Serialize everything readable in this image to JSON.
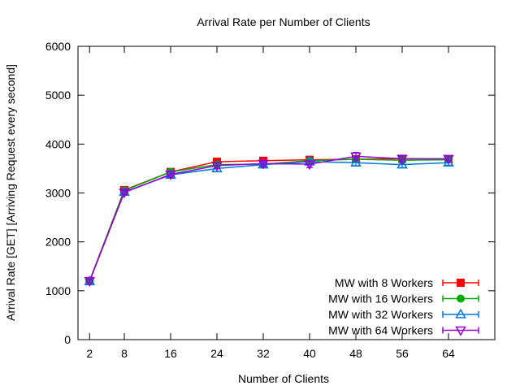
{
  "chart_data": {
    "type": "line",
    "title": "Arrival Rate per Number of Clients",
    "xlabel": "Number of Clients",
    "ylabel": "Arrival Rate [GET] [Arriving Request every second]",
    "x": [
      2,
      8,
      16,
      24,
      32,
      40,
      48,
      56,
      64
    ],
    "xlim": [
      0,
      72
    ],
    "ylim": [
      0,
      6000
    ],
    "yticks": [
      0,
      1000,
      2000,
      3000,
      4000,
      5000,
      6000
    ],
    "xticks": [
      2,
      8,
      16,
      24,
      32,
      40,
      48,
      56,
      64
    ],
    "legend_position": "bottom-right",
    "series": [
      {
        "name": "MW with 8 Workers",
        "color": "#ff0000",
        "marker": "square",
        "values": [
          1200,
          3060,
          3430,
          3640,
          3660,
          3680,
          3690,
          3700,
          3690
        ],
        "err": [
          30,
          40,
          40,
          50,
          40,
          50,
          60,
          50,
          40
        ]
      },
      {
        "name": "MW with 16 Workers",
        "color": "#00aa00",
        "marker": "circle",
        "values": [
          1200,
          3050,
          3430,
          3580,
          3590,
          3660,
          3690,
          3670,
          3680
        ],
        "err": [
          30,
          40,
          40,
          60,
          40,
          50,
          60,
          50,
          40
        ]
      },
      {
        "name": "MW with 32 Workers",
        "color": "#0077dd",
        "marker": "triangle-up",
        "values": [
          1190,
          3020,
          3370,
          3500,
          3580,
          3640,
          3620,
          3580,
          3620
        ],
        "err": [
          30,
          40,
          50,
          60,
          50,
          50,
          60,
          60,
          50
        ]
      },
      {
        "name": "MW with 64 Workers",
        "color": "#9400d3",
        "marker": "triangle-down",
        "values": [
          1200,
          3010,
          3380,
          3560,
          3600,
          3590,
          3750,
          3700,
          3700
        ],
        "err": [
          30,
          40,
          50,
          60,
          50,
          70,
          80,
          50,
          40
        ]
      }
    ]
  }
}
